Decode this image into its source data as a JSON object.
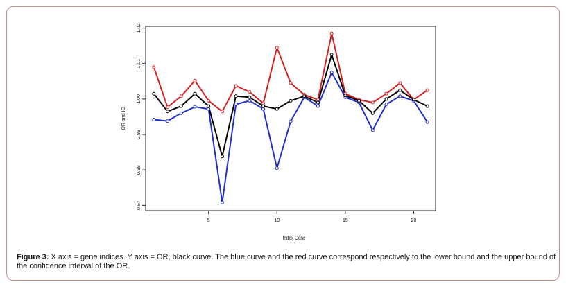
{
  "chart_data": {
    "type": "line",
    "x": [
      1,
      2,
      3,
      4,
      5,
      6,
      7,
      8,
      9,
      10,
      11,
      12,
      13,
      14,
      15,
      16,
      17,
      18,
      19,
      20,
      21
    ],
    "series": [
      {
        "color": "#000000",
        "values": [
          1.0015,
          0.9965,
          0.998,
          1.0015,
          0.998,
          0.9838,
          1.0008,
          1.0005,
          0.998,
          0.9972,
          0.9995,
          1.0008,
          0.999,
          1.0125,
          1.001,
          0.9995,
          0.996,
          1.0,
          1.0025,
          0.9998,
          0.998
        ]
      },
      {
        "color": "#1f2fc8",
        "values": [
          0.9942,
          0.9938,
          0.996,
          0.9978,
          0.9972,
          0.9708,
          0.9985,
          0.9995,
          0.9972,
          0.9805,
          0.9937,
          1.0005,
          0.998,
          1.0075,
          1.0005,
          0.999,
          0.9912,
          0.9985,
          1.0008,
          0.9995,
          0.9935
        ]
      },
      {
        "color": "#d42020",
        "values": [
          1.009,
          0.9977,
          1.0008,
          1.0052,
          0.9995,
          0.9965,
          1.0037,
          1.002,
          0.9988,
          1.0145,
          1.0045,
          1.0012,
          0.9998,
          1.0185,
          1.0015,
          0.9998,
          0.999,
          1.0015,
          1.0045,
          0.9998,
          1.0025
        ]
      }
    ],
    "xlabel": "Index Gene",
    "ylabel": "OR and IC",
    "xticks": [
      5,
      10,
      15,
      20
    ],
    "xtick_labels": [
      "5",
      "10",
      "15",
      "20"
    ],
    "yticks": [
      0.97,
      0.98,
      0.99,
      1.0,
      1.01,
      1.02
    ],
    "ytick_labels": [
      "0.97",
      "0.98",
      "0.99",
      "1.00",
      "1.01",
      "1.02"
    ],
    "xlim": [
      0.4,
      21.6
    ],
    "ylim": [
      0.9685,
      1.0205
    ],
    "grid": false
  },
  "caption": {
    "label": "Figure 3:",
    "text": " X axis = gene indices. Y axis = OR, black curve. The blue curve and the red curve correspond respectively to the lower bound and the upper bound of the confidence interval of the OR."
  }
}
